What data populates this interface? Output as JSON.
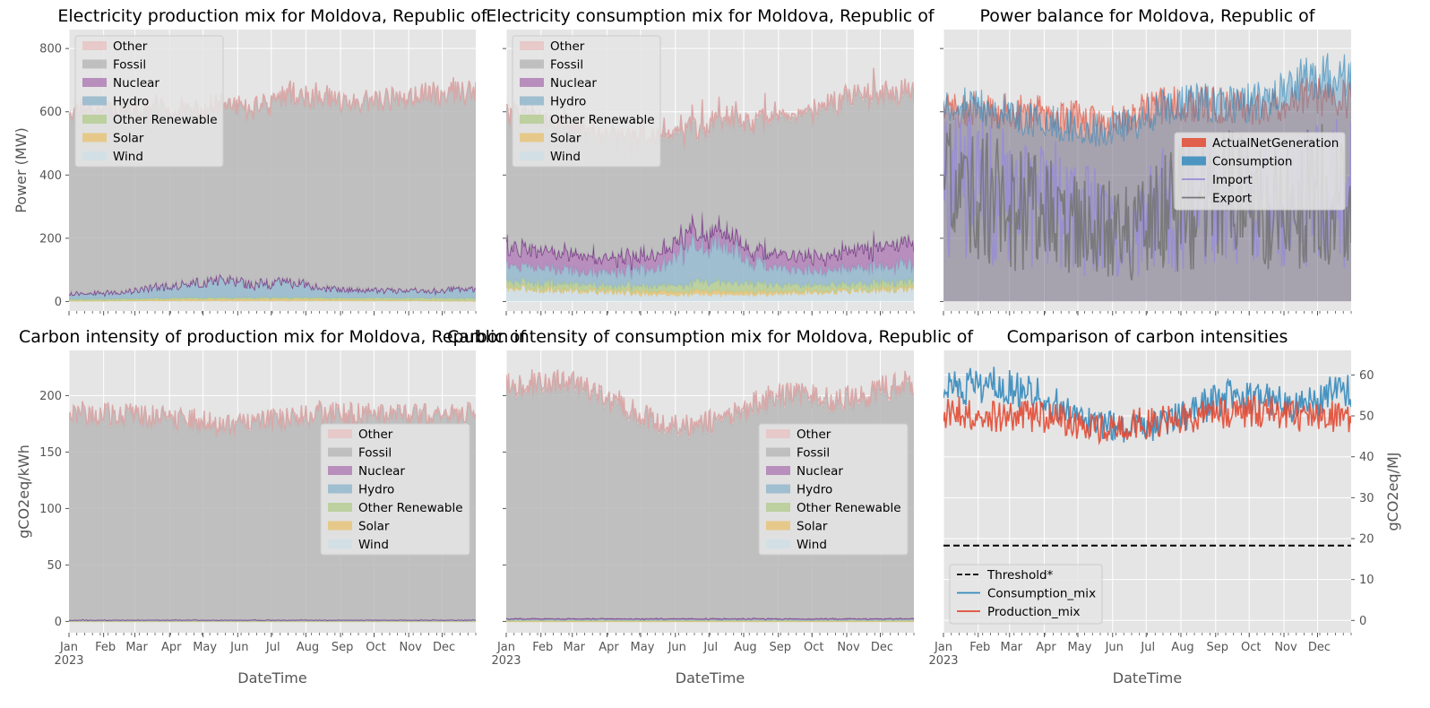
{
  "chart_data": [
    {
      "id": "prod-mix",
      "type": "area",
      "title": "Electricity production mix for Moldova, Republic of",
      "xlabel": "",
      "ylabel": "Power (MW)",
      "ylim": [
        -30,
        860
      ],
      "yticks": [
        0,
        200,
        400,
        600,
        800
      ],
      "legend": {
        "loc": "upper-left",
        "entries": [
          "Other",
          "Fossil",
          "Nuclear",
          "Hydro",
          "Other Renewable",
          "Solar",
          "Wind"
        ]
      },
      "series": [
        {
          "name": "Wind",
          "color": "#cfdfe6",
          "monthly": [
            1,
            1,
            1,
            1,
            1,
            1,
            1,
            1,
            1,
            1,
            1,
            1
          ]
        },
        {
          "name": "Solar",
          "color": "#e6c47a",
          "monthly": [
            1,
            2,
            4,
            5,
            6,
            6,
            6,
            5,
            4,
            3,
            2,
            1
          ]
        },
        {
          "name": "Other Renewable",
          "color": "#b5cc94",
          "monthly": [
            5,
            5,
            5,
            5,
            5,
            5,
            5,
            5,
            6,
            7,
            8,
            8
          ]
        },
        {
          "name": "Hydro",
          "color": "#93b7cc",
          "monthly": [
            20,
            22,
            35,
            45,
            58,
            42,
            55,
            30,
            25,
            25,
            25,
            30
          ]
        },
        {
          "name": "Nuclear",
          "color": "#b07fb5",
          "monthly": [
            0,
            0,
            0,
            0,
            0,
            0,
            0,
            0,
            0,
            0,
            0,
            0
          ]
        },
        {
          "name": "Fossil",
          "color": "#b8b8b8",
          "monthly": [
            580,
            570,
            560,
            540,
            545,
            560,
            590,
            595,
            585,
            600,
            620,
            620
          ]
        },
        {
          "name": "Other",
          "color": "#e8c4c4",
          "monthly": [
            5,
            5,
            5,
            5,
            5,
            5,
            5,
            5,
            5,
            5,
            5,
            5
          ]
        }
      ]
    },
    {
      "id": "cons-mix",
      "type": "area",
      "title": "Electricity consumption mix for Moldova, Republic of",
      "xlabel": "",
      "ylabel": "",
      "ylim": [
        -30,
        860
      ],
      "yticks": [
        0,
        200,
        400,
        600,
        800
      ],
      "legend": {
        "loc": "upper-left",
        "entries": [
          "Other",
          "Fossil",
          "Nuclear",
          "Hydro",
          "Other Renewable",
          "Solar",
          "Wind"
        ]
      },
      "series": [
        {
          "name": "Wind",
          "color": "#cfdfe6",
          "monthly": [
            40,
            35,
            30,
            25,
            20,
            20,
            20,
            20,
            25,
            30,
            35,
            40
          ]
        },
        {
          "name": "Solar",
          "color": "#e6c47a",
          "monthly": [
            2,
            3,
            5,
            8,
            10,
            11,
            11,
            10,
            7,
            5,
            3,
            2
          ]
        },
        {
          "name": "Other Renewable",
          "color": "#b5cc94",
          "monthly": [
            20,
            20,
            18,
            18,
            18,
            25,
            30,
            25,
            20,
            20,
            20,
            20
          ]
        },
        {
          "name": "Hydro",
          "color": "#93b7cc",
          "monthly": [
            50,
            45,
            40,
            50,
            60,
            130,
            110,
            60,
            45,
            45,
            50,
            55
          ]
        },
        {
          "name": "Nuclear",
          "color": "#b07fb5",
          "monthly": [
            60,
            55,
            50,
            45,
            45,
            50,
            45,
            40,
            45,
            50,
            60,
            70
          ]
        },
        {
          "name": "Fossil",
          "color": "#b8b8b8",
          "monthly": [
            420,
            400,
            380,
            380,
            360,
            320,
            360,
            420,
            440,
            470,
            480,
            470
          ]
        },
        {
          "name": "Other",
          "color": "#e8c4c4",
          "monthly": [
            10,
            10,
            10,
            10,
            10,
            10,
            10,
            10,
            10,
            10,
            10,
            10
          ]
        }
      ]
    },
    {
      "id": "power-balance",
      "type": "area",
      "title": "Power balance for Moldova, Republic of",
      "xlabel": "",
      "ylabel": "",
      "ylim": [
        -30,
        860
      ],
      "yticks": [
        0,
        200,
        400,
        600,
        800
      ],
      "legend": {
        "loc": "center-right",
        "entries": [
          "ActualNetGeneration",
          "Consumption",
          "Import",
          "Export"
        ]
      },
      "series": [
        {
          "name": "ActualNetGeneration",
          "color": "#e24a33",
          "style": "area",
          "monthly": [
            610,
            600,
            600,
            590,
            560,
            590,
            620,
            630,
            610,
            620,
            650,
            640
          ]
        },
        {
          "name": "Consumption",
          "color": "#348abd",
          "style": "area",
          "monthly": [
            620,
            610,
            580,
            560,
            540,
            560,
            620,
            630,
            620,
            640,
            700,
            720
          ]
        },
        {
          "name": "Import",
          "color": "#988ed5",
          "style": "line",
          "monthly": [
            350,
            330,
            300,
            300,
            250,
            200,
            300,
            320,
            330,
            300,
            330,
            340
          ]
        },
        {
          "name": "Export",
          "color": "#777777",
          "style": "line",
          "monthly": [
            340,
            320,
            280,
            260,
            240,
            220,
            300,
            310,
            320,
            300,
            330,
            330
          ]
        }
      ]
    },
    {
      "id": "ci-prod",
      "type": "area",
      "title": "Carbon intensity of production mix for Moldova, Republic of",
      "xlabel": "DateTime",
      "ylabel": "gCO2eq/kWh",
      "ylim": [
        -10,
        240
      ],
      "yticks": [
        0,
        50,
        100,
        150,
        200
      ],
      "legend": {
        "loc": "center-right",
        "entries": [
          "Other",
          "Fossil",
          "Nuclear",
          "Hydro",
          "Other Renewable",
          "Solar",
          "Wind"
        ]
      },
      "series": [
        {
          "name": "Wind",
          "color": "#cfdfe6",
          "monthly": [
            0,
            0,
            0,
            0,
            0,
            0,
            0,
            0,
            0,
            0,
            0,
            0
          ]
        },
        {
          "name": "Solar",
          "color": "#e6c47a",
          "monthly": [
            0,
            0,
            0,
            0,
            0,
            0,
            0,
            0,
            0,
            0,
            0,
            0
          ]
        },
        {
          "name": "Other Renewable",
          "color": "#b5cc94",
          "monthly": [
            0.3,
            0.3,
            0.3,
            0.3,
            0.3,
            0.3,
            0.3,
            0.3,
            0.3,
            0.3,
            0.3,
            0.3
          ]
        },
        {
          "name": "Hydro",
          "color": "#93b7cc",
          "monthly": [
            0.5,
            0.5,
            0.5,
            0.5,
            0.5,
            0.5,
            0.5,
            0.5,
            0.5,
            0.5,
            0.5,
            0.5
          ]
        },
        {
          "name": "Nuclear",
          "color": "#b07fb5",
          "monthly": [
            0.5,
            0.5,
            0.5,
            0.5,
            0.5,
            0.5,
            0.5,
            0.5,
            0.5,
            0.5,
            0.5,
            0.5
          ]
        },
        {
          "name": "Fossil",
          "color": "#b8b8b8",
          "monthly": [
            182,
            180,
            178,
            176,
            170,
            172,
            177,
            182,
            180,
            179,
            180,
            180
          ]
        },
        {
          "name": "Other",
          "color": "#e8c4c4",
          "monthly": [
            2,
            2,
            2,
            2,
            2,
            2,
            2,
            2,
            2,
            2,
            2,
            2
          ]
        }
      ]
    },
    {
      "id": "ci-cons",
      "type": "area",
      "title": "Carbon intensity of consumption mix for Moldova, Republic of",
      "xlabel": "DateTime",
      "ylabel": "",
      "ylim": [
        -10,
        240
      ],
      "yticks": [
        0,
        50,
        100,
        150,
        200
      ],
      "legend": {
        "loc": "center-right",
        "entries": [
          "Other",
          "Fossil",
          "Nuclear",
          "Hydro",
          "Other Renewable",
          "Solar",
          "Wind"
        ]
      },
      "series": [
        {
          "name": "Wind",
          "color": "#cfdfe6",
          "monthly": [
            0,
            0,
            0,
            0,
            0,
            0,
            0,
            0,
            0,
            0,
            0,
            0
          ]
        },
        {
          "name": "Solar",
          "color": "#e6c47a",
          "monthly": [
            0,
            0,
            0,
            0,
            0,
            0,
            0,
            0,
            0,
            0,
            0,
            0
          ]
        },
        {
          "name": "Other Renewable",
          "color": "#b5cc94",
          "monthly": [
            1,
            1,
            1,
            1,
            1,
            1,
            1,
            1,
            1,
            1,
            1,
            1
          ]
        },
        {
          "name": "Hydro",
          "color": "#93b7cc",
          "monthly": [
            0.5,
            0.5,
            0.5,
            0.5,
            0.5,
            0.5,
            0.5,
            0.5,
            0.5,
            0.5,
            0.5,
            0.5
          ]
        },
        {
          "name": "Nuclear",
          "color": "#b07fb5",
          "monthly": [
            1,
            1,
            1,
            1,
            1,
            1,
            1,
            1,
            1,
            1,
            1,
            1
          ]
        },
        {
          "name": "Fossil",
          "color": "#b8b8b8",
          "monthly": [
            205,
            210,
            200,
            185,
            172,
            168,
            175,
            190,
            200,
            190,
            195,
            205
          ]
        },
        {
          "name": "Other",
          "color": "#e8c4c4",
          "monthly": [
            3,
            3,
            3,
            3,
            3,
            3,
            3,
            3,
            3,
            3,
            3,
            3
          ]
        }
      ]
    },
    {
      "id": "ci-compare",
      "type": "line",
      "title": "Comparison of carbon intensities",
      "xlabel": "DateTime",
      "ylabel": "gCO2eq/MJ",
      "y_axis_side": "right",
      "ylim": [
        -3,
        66
      ],
      "yticks": [
        0,
        10,
        20,
        30,
        40,
        50,
        60
      ],
      "legend": {
        "loc": "lower-left",
        "entries": [
          "Threshold*",
          "Consumption_mix",
          "Production_mix"
        ]
      },
      "series": [
        {
          "name": "Threshold*",
          "color": "#000000",
          "style": "dashed",
          "monthly": [
            18.3,
            18.3,
            18.3,
            18.3,
            18.3,
            18.3,
            18.3,
            18.3,
            18.3,
            18.3,
            18.3,
            18.3
          ]
        },
        {
          "name": "Consumption_mix",
          "color": "#348abd",
          "style": "line",
          "monthly": [
            57,
            58,
            56,
            52,
            48,
            47,
            48,
            52,
            55,
            54,
            52,
            56
          ]
        },
        {
          "name": "Production_mix",
          "color": "#e24a33",
          "style": "line",
          "monthly": [
            51,
            50,
            50,
            49,
            47,
            48,
            49,
            50,
            51,
            51,
            50,
            50
          ]
        }
      ]
    }
  ],
  "x_axis": {
    "month_labels": [
      "Jan",
      "Feb",
      "Mar",
      "Apr",
      "May",
      "Jun",
      "Jul",
      "Aug",
      "Sep",
      "Oct",
      "Nov",
      "Dec"
    ],
    "year_label": "2023"
  }
}
